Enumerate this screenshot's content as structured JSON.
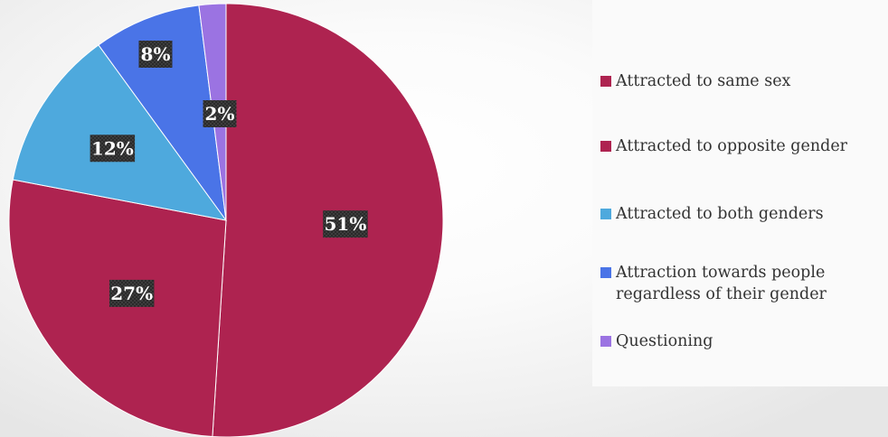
{
  "chart_data": {
    "type": "pie",
    "categories": [
      "Attracted to same sex",
      "Attracted to opposite gender",
      "Attracted to both genders",
      "Attraction towards people regardless of their gender",
      "Questioning"
    ],
    "values": [
      51,
      27,
      12,
      8,
      2
    ],
    "data_labels": [
      "51%",
      "27%",
      "12%",
      "8%",
      "2%"
    ],
    "colors": [
      "#ae2350",
      "#ae2350",
      "#4ea9dd",
      "#4a74e7",
      "#9b73e2"
    ],
    "legend_position": "right",
    "legend_labels": [
      "Attracted to same sex",
      "Attracted to opposite gender",
      "Attracted to both genders",
      "Attraction towards people\nregardless of their gender",
      "Questioning"
    ]
  }
}
